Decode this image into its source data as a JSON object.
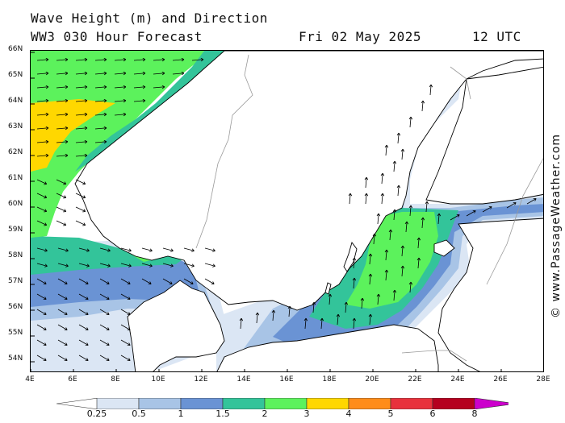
{
  "title_line1": "Wave Height (m) and Direction",
  "title_line2": "WW3 030 Hour Forecast",
  "date": "Fri 02 May 2025",
  "time": "12 UTC",
  "credit": "© www.PassageWeather.com",
  "lat_labels": [
    "66N",
    "65N",
    "64N",
    "63N",
    "62N",
    "61N",
    "60N",
    "59N",
    "58N",
    "57N",
    "56N",
    "55N",
    "54N"
  ],
  "lon_labels": [
    "4E",
    "6E",
    "8E",
    "10E",
    "12E",
    "14E",
    "16E",
    "18E",
    "20E",
    "22E",
    "24E",
    "26E",
    "28E"
  ],
  "legend": {
    "ticks": [
      "0.25",
      "0.5",
      "1",
      "1.5",
      "2",
      "3",
      "4",
      "5",
      "6",
      "8"
    ],
    "colors": [
      "#ffffff",
      "#dbe6f4",
      "#a8c4e6",
      "#6a93d4",
      "#33c49a",
      "#5cf25c",
      "#ffd700",
      "#ff8c1a",
      "#e8323c",
      "#b5001f",
      "#cc00cc"
    ]
  },
  "colors": {
    "land": "#ffffff",
    "coast": "#000000",
    "border": "#9a9a9a",
    "arrow": "#000000"
  }
}
